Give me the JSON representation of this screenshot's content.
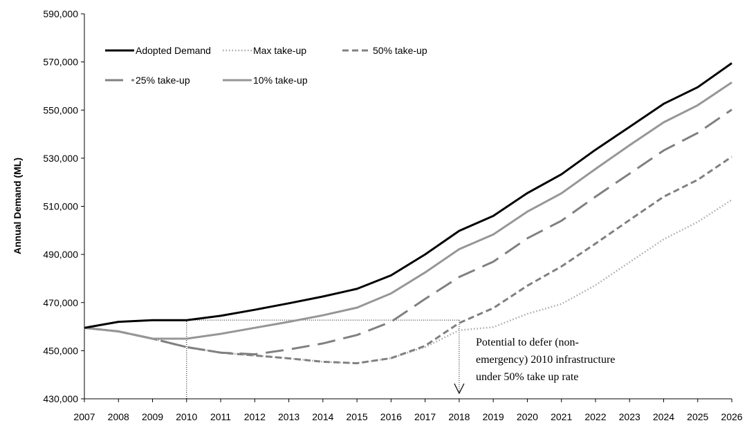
{
  "chart_data": {
    "type": "line",
    "title": "",
    "xlabel": "",
    "ylabel": "Annual Demand (ML)",
    "x": [
      2007,
      2008,
      2009,
      2010,
      2011,
      2012,
      2013,
      2014,
      2015,
      2016,
      2017,
      2018,
      2019,
      2020,
      2021,
      2022,
      2023,
      2024,
      2025,
      2026
    ],
    "x_tick_labels": [
      "2007",
      "2008",
      "2009",
      "2010",
      "2011",
      "2012",
      "2013",
      "2014",
      "2015",
      "2016",
      "2017",
      "2018",
      "2019",
      "2020",
      "2021",
      "2022",
      "2023",
      "2024",
      "2025",
      "2026"
    ],
    "ylim": [
      430000,
      590000
    ],
    "y_ticks": [
      430000,
      450000,
      470000,
      490000,
      510000,
      530000,
      550000,
      570000,
      590000
    ],
    "y_tick_labels": [
      "430,000",
      "450,000",
      "470,000",
      "490,000",
      "510,000",
      "530,000",
      "550,000",
      "570,000",
      "590,000"
    ],
    "grid": false,
    "legend_position": "top-left",
    "series": [
      {
        "name": "Adopted Demand",
        "color": "#000000",
        "style": "solid",
        "values": [
          459500,
          462000,
          462700,
          462700,
          464500,
          467000,
          469700,
          472500,
          475700,
          481300,
          490000,
          499800,
          506000,
          515500,
          523300,
          533500,
          543000,
          552600,
          559500,
          569500
        ]
      },
      {
        "name": "Max take-up",
        "color": "#a6a6a6",
        "style": "dotted",
        "values": [
          459500,
          458000,
          455000,
          451500,
          449200,
          448000,
          446800,
          445400,
          444800,
          446900,
          451500,
          458500,
          459800,
          465300,
          469400,
          477200,
          486800,
          496300,
          503500,
          512700
        ]
      },
      {
        "name": "50% take-up",
        "color": "#808080",
        "style": "dashed",
        "values": [
          459500,
          458000,
          455000,
          451500,
          449200,
          448000,
          446800,
          445400,
          444800,
          446900,
          452000,
          461500,
          467700,
          477000,
          485000,
          494500,
          504300,
          514000,
          521000,
          530600
        ]
      },
      {
        "name": "25% take-up",
        "color": "#808080",
        "style": "longdash",
        "values": [
          459500,
          458000,
          455000,
          451500,
          449200,
          448500,
          450500,
          453000,
          456500,
          462000,
          471500,
          480600,
          487000,
          496700,
          504000,
          514000,
          523600,
          533200,
          540500,
          550200
        ]
      },
      {
        "name": "10% take-up",
        "color": "#969696",
        "style": "solid",
        "values": [
          459500,
          458000,
          455000,
          455000,
          457000,
          459500,
          462000,
          464700,
          467900,
          473800,
          482500,
          492200,
          498300,
          507800,
          515400,
          525500,
          535400,
          544900,
          552000,
          561500
        ]
      }
    ],
    "annotation": {
      "lines": [
        "Potential to defer (non-",
        "emergency) 2010 infrastructure",
        "under 50% take up rate"
      ],
      "from_x": 2010,
      "to_x": 2018,
      "level_y": 462700
    }
  }
}
